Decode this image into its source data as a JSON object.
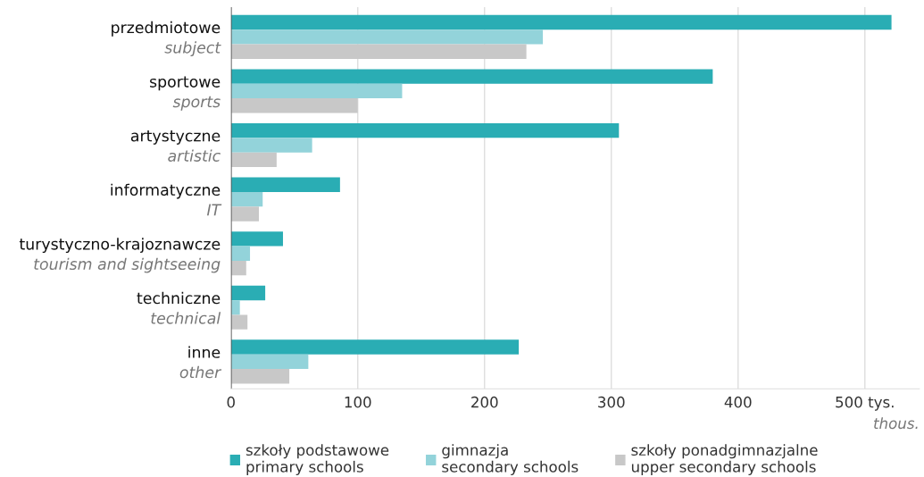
{
  "chart_data": {
    "type": "bar",
    "orientation": "horizontal",
    "categories": [
      "przedmiotowe\nsubject",
      "sportowe\nsports",
      "artystyczne\nartistic",
      "informatyczne\nIT",
      "turystyczno-krajoznawcze\ntourism and sightseeing",
      "techniczne\ntechnical",
      "inne\nother"
    ],
    "series": [
      {
        "name": "szkoły podstawowe\nprimary schools",
        "color": "#2aadb4",
        "values": [
          521,
          380,
          306,
          86,
          41,
          27,
          227
        ]
      },
      {
        "name": "gimnazja\nsecondary schools",
        "color": "#93d3da",
        "values": [
          246,
          135,
          64,
          25,
          15,
          7,
          61
        ]
      },
      {
        "name": "szkoły ponadgimnazjalne\nupper secondary schools",
        "color": "#c8c8c8",
        "values": [
          233,
          100,
          36,
          22,
          12,
          13,
          46
        ]
      }
    ],
    "xlim": [
      0,
      543
    ],
    "xticks": [
      0,
      100,
      200,
      300,
      400,
      {
        "value": 500,
        "label": "500 tys."
      }
    ],
    "xlabel": "thous.",
    "grid": "x",
    "legend": "bottom"
  }
}
